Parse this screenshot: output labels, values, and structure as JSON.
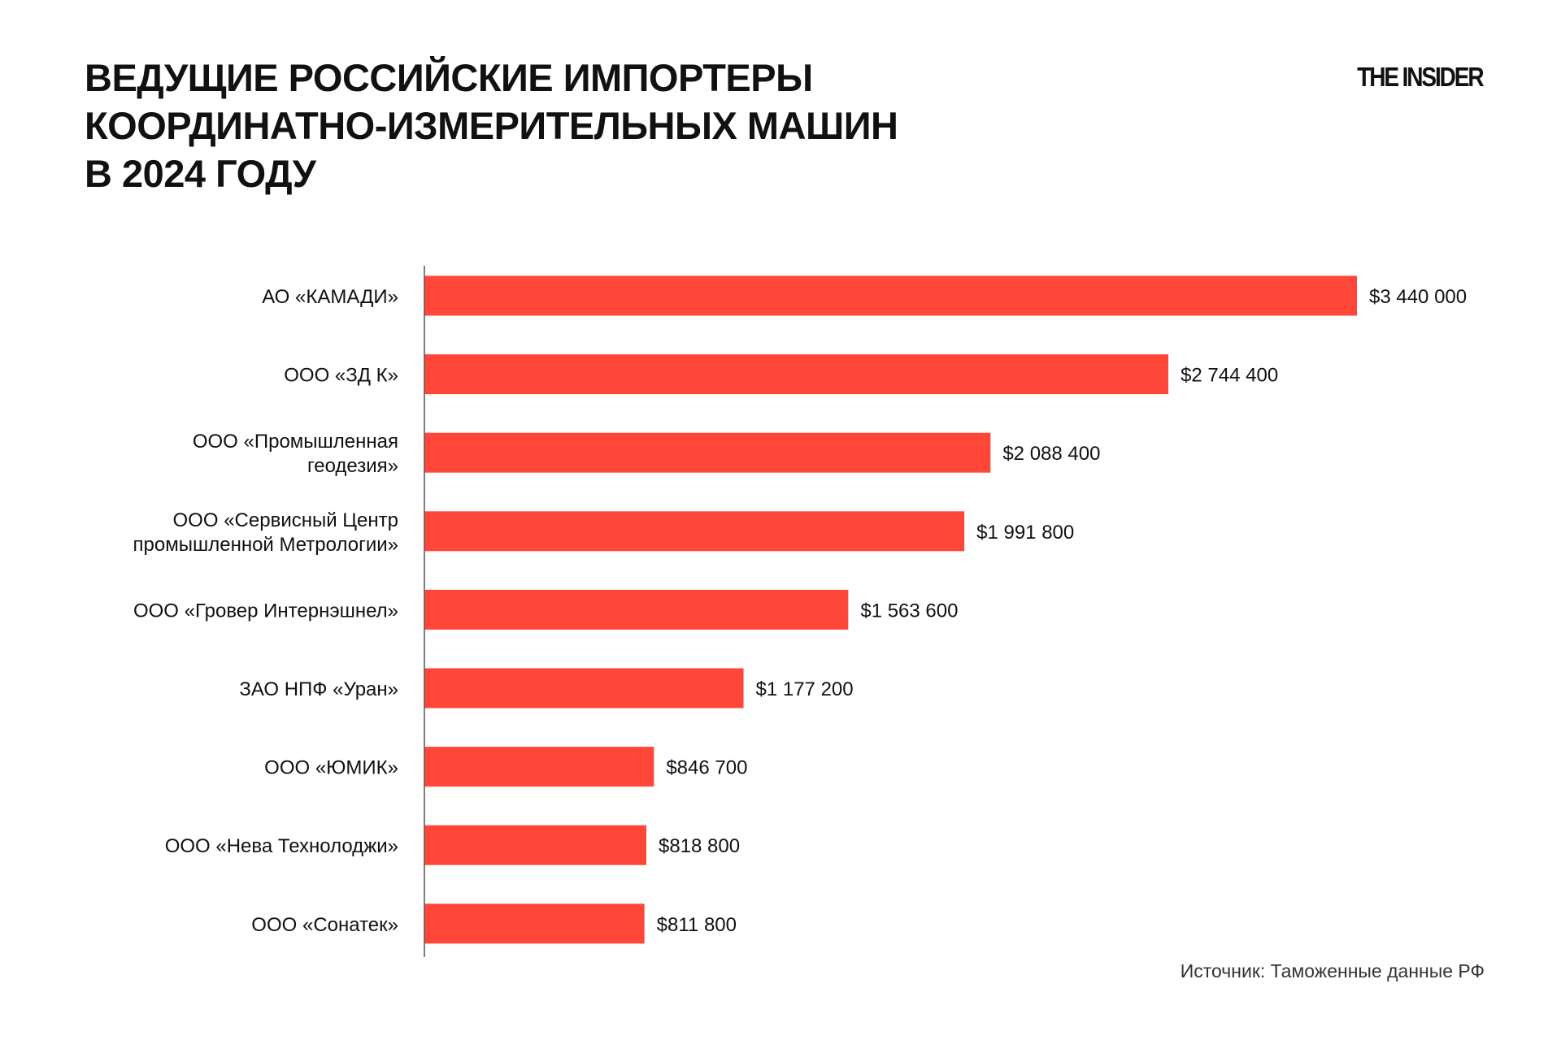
{
  "title_lines": [
    "ВЕДУЩИЕ РОССИЙСКИЕ ИМПОРТЕРЫ",
    "КООРДИНАТНО-ИЗМЕРИТЕЛЬНЫХ МАШИН",
    "В 2024 ГОДУ"
  ],
  "logo": "THE INSIDER",
  "source": "Источник: Таможенные данные РФ",
  "colors": {
    "bar": "#ff4638",
    "text": "#111111",
    "axis": "#555555"
  },
  "chart_data": {
    "type": "bar",
    "orientation": "horizontal",
    "title": "ВЕДУЩИЕ РОССИЙСКИЕ ИМПОРТЕРЫ КООРДИНАТНО-ИЗМЕРИТЕЛЬНЫХ МАШИН В 2024 ГОДУ",
    "categories": [
      [
        "АО «КАМАДИ»"
      ],
      [
        "ООО «ЗД К»"
      ],
      [
        "ООО «Промышленная",
        "геодезия»"
      ],
      [
        "ООО «Сервисный Центр",
        "промышленной Метрологии»"
      ],
      [
        "ООО «Гровер Интернэшнел»"
      ],
      [
        "ЗАО НПФ «Уран»"
      ],
      [
        "ООО «ЮМИК»"
      ],
      [
        "ООО «Нева Технолоджи»"
      ],
      [
        "ООО «Сонатек»"
      ]
    ],
    "values": [
      3440000,
      2744400,
      2088400,
      1991800,
      1563600,
      1177200,
      846700,
      818800,
      811800
    ],
    "data_labels": [
      "$3 440 000",
      "$2 744 400",
      "$2 088 400",
      "$1 991 800",
      "$1 563 600",
      "$1 177 200",
      "$846 700",
      "$818 800",
      "$811 800"
    ],
    "xlim": [
      0,
      3440000
    ],
    "grid": false,
    "legend": "none"
  }
}
